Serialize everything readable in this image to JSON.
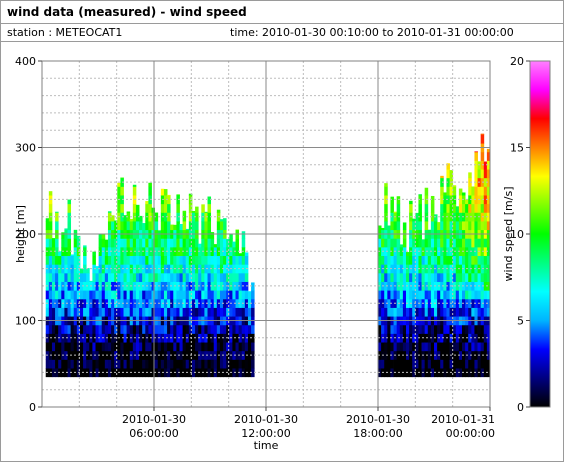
{
  "header": {
    "title": "wind data (measured) - wind speed",
    "station": "station : METEOCAT1",
    "time_range": "time: 2010-01-30 00:10:00 to 2010-01-31 00:00:00"
  },
  "chart_data": {
    "type": "heatmap",
    "title": "wind data (measured) - wind speed",
    "xlabel": "time",
    "ylabel": "height [m]",
    "colorbar_label": "wind speed [m/s]",
    "x_unit": "hours",
    "xlim": [
      0,
      24
    ],
    "ylim": [
      0,
      400
    ],
    "clim": [
      0,
      20
    ],
    "x_ticks": [
      {
        "value": 6,
        "label": [
          "2010-01-30",
          "06:00:00"
        ]
      },
      {
        "value": 12,
        "label": [
          "2010-01-30",
          "12:00:00"
        ]
      },
      {
        "value": 18,
        "label": [
          "2010-01-30",
          "18:00:00"
        ]
      },
      {
        "value": 24,
        "label": [
          "2010-01-31",
          "00:00:00"
        ]
      }
    ],
    "y_ticks": [
      0,
      100,
      200,
      300,
      400
    ],
    "colorbar_ticks": [
      0,
      5,
      10,
      15,
      20
    ],
    "colormap": [
      "#000000",
      "#000080",
      "#0000ff",
      "#00b4ff",
      "#00ffff",
      "#00ff80",
      "#00ff00",
      "#80ff00",
      "#ffff00",
      "#ff8000",
      "#ff0000",
      "#ff00ff",
      "#ff80ff"
    ],
    "grid": true,
    "bin_width_minutes": 10,
    "range_gate_m": 10,
    "lowest_gate_m": 35,
    "segments": [
      {
        "start_hour": 0.2,
        "end_hour": 11.3
      },
      {
        "start_hour": 18.0,
        "end_hour": 24.0
      }
    ],
    "profile_top_m": [
      {
        "hour": 0.5,
        "top": 240
      },
      {
        "hour": 1.0,
        "top": 225
      },
      {
        "hour": 1.5,
        "top": 230
      },
      {
        "hour": 2.0,
        "top": 200
      },
      {
        "hour": 2.5,
        "top": 195
      },
      {
        "hour": 3.0,
        "top": 215
      },
      {
        "hour": 3.5,
        "top": 250
      },
      {
        "hour": 4.0,
        "top": 260
      },
      {
        "hour": 4.5,
        "top": 275
      },
      {
        "hour": 5.0,
        "top": 265
      },
      {
        "hour": 5.5,
        "top": 240
      },
      {
        "hour": 6.0,
        "top": 255
      },
      {
        "hour": 6.5,
        "top": 240
      },
      {
        "hour": 7.0,
        "top": 235
      },
      {
        "hour": 7.5,
        "top": 230
      },
      {
        "hour": 8.0,
        "top": 240
      },
      {
        "hour": 8.5,
        "top": 225
      },
      {
        "hour": 9.0,
        "top": 235
      },
      {
        "hour": 9.5,
        "top": 215
      },
      {
        "hour": 10.0,
        "top": 200
      },
      {
        "hour": 10.5,
        "top": 190
      },
      {
        "hour": 11.0,
        "top": 185
      },
      {
        "hour": 18.0,
        "top": 265
      },
      {
        "hour": 18.5,
        "top": 255
      },
      {
        "hour": 19.0,
        "top": 230
      },
      {
        "hour": 19.5,
        "top": 215
      },
      {
        "hour": 20.0,
        "top": 230
      },
      {
        "hour": 20.5,
        "top": 240
      },
      {
        "hour": 21.0,
        "top": 255
      },
      {
        "hour": 21.5,
        "top": 265
      },
      {
        "hour": 22.0,
        "top": 270
      },
      {
        "hour": 22.5,
        "top": 285
      },
      {
        "hour": 23.0,
        "top": 295
      },
      {
        "hour": 23.5,
        "top": 310
      },
      {
        "hour": 24.0,
        "top": 320
      }
    ],
    "speed_profile": [
      {
        "height": 35,
        "speed": 0.2
      },
      {
        "height": 60,
        "speed": 1.2
      },
      {
        "height": 85,
        "speed": 2.8
      },
      {
        "height": 110,
        "speed": 4.8
      },
      {
        "height": 140,
        "speed": 7.0
      },
      {
        "height": 180,
        "speed": 9.5
      },
      {
        "height": 230,
        "speed": 12.0
      },
      {
        "height": 300,
        "speed": 14.0
      }
    ],
    "late_day_boost": [
      {
        "hour": 18,
        "boost": 0
      },
      {
        "hour": 22,
        "boost": 0
      },
      {
        "hour": 24,
        "boost": 3
      }
    ]
  }
}
